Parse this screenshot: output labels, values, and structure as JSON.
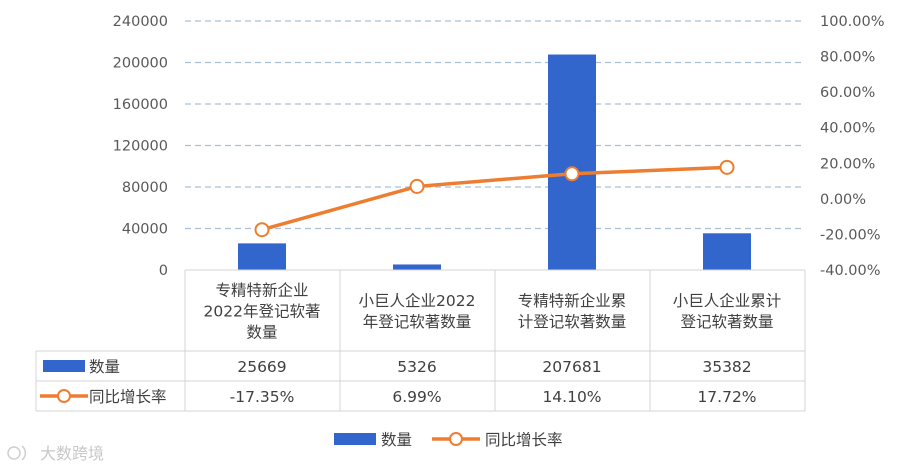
{
  "chart_data": {
    "type": "bar",
    "categories": [
      [
        "专精特新企业",
        "2022年登记软著",
        "数量"
      ],
      [
        "小巨人企业2022",
        "年登记软著数量"
      ],
      [
        "专精特新企业累",
        "计登记软著数量"
      ],
      [
        "小巨人企业累计",
        "登记软著数量"
      ]
    ],
    "series": [
      {
        "name": "数量",
        "type": "bar",
        "axis": "left",
        "color": "#3366CC",
        "values": [
          25669,
          5326,
          207681,
          35382
        ],
        "labels": [
          "25669",
          "5326",
          "207681",
          "35382"
        ]
      },
      {
        "name": "同比增长率",
        "type": "line",
        "axis": "right",
        "color": "#ED7D31",
        "values": [
          -17.35,
          6.99,
          14.1,
          17.72
        ],
        "labels": [
          "-17.35%",
          "6.99%",
          "14.10%",
          "17.72%"
        ]
      }
    ],
    "y_left": {
      "min": 0,
      "max": 240000,
      "ticks": [
        "0",
        "40000",
        "80000",
        "120000",
        "160000",
        "200000",
        "240000"
      ]
    },
    "y_right": {
      "min": -40,
      "max": 100,
      "ticks": [
        "-40.00%",
        "-20.00%",
        "0.00%",
        "20.00%",
        "40.00%",
        "60.00%",
        "80.00%",
        "100.00%"
      ]
    },
    "grid": "dashed horizontal",
    "legend": {
      "position": "bottom",
      "items": [
        "数量",
        "同比增长率"
      ]
    },
    "data_table": true
  },
  "watermark": "大数跨境"
}
